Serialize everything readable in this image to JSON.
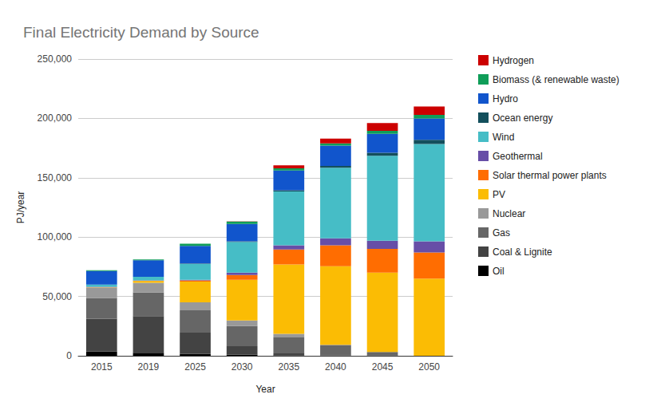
{
  "chart_data": {
    "type": "bar",
    "title": "Final Electricity Demand by Source",
    "x_label": "Year",
    "y_label": "PJ/year",
    "categories": [
      "2015",
      "2019",
      "2025",
      "2030",
      "2035",
      "2040",
      "2045",
      "2050"
    ],
    "stacked": true,
    "grid": true,
    "legend": "right",
    "ylim": [
      0,
      250000
    ],
    "yticks": [
      0,
      50000,
      100000,
      150000,
      200000,
      250000
    ],
    "series": [
      {
        "name": "Oil",
        "color": "#000000",
        "values": [
          3500,
          2500,
          1500,
          800,
          300,
          0,
          0,
          0
        ]
      },
      {
        "name": "Coal & Lignite",
        "color": "#434343",
        "values": [
          27800,
          31000,
          18000,
          7200,
          1700,
          300,
          200,
          0
        ]
      },
      {
        "name": "Gas",
        "color": "#666666",
        "values": [
          17500,
          20000,
          18800,
          17000,
          13500,
          8700,
          3000,
          0
        ]
      },
      {
        "name": "Nuclear",
        "color": "#999999",
        "values": [
          8500,
          8000,
          6700,
          4800,
          3000,
          200,
          0,
          0
        ]
      },
      {
        "name": "PV",
        "color": "#fbbc04",
        "values": [
          300,
          1500,
          17500,
          34200,
          58500,
          66300,
          66800,
          65000
        ]
      },
      {
        "name": "Solar thermal power plants",
        "color": "#ff6d01",
        "values": [
          100,
          200,
          1000,
          4000,
          12500,
          17500,
          20000,
          22000
        ]
      },
      {
        "name": "Geothermal",
        "color": "#674ea7",
        "values": [
          400,
          300,
          500,
          2000,
          3500,
          6000,
          7000,
          9500
        ]
      },
      {
        "name": "Wind",
        "color": "#46bdc6",
        "values": [
          1800,
          3000,
          13500,
          26000,
          45500,
          59500,
          71500,
          82000
        ]
      },
      {
        "name": "Ocean energy",
        "color": "#134f5c",
        "values": [
          0,
          0,
          300,
          500,
          1000,
          1500,
          2500,
          3500
        ]
      },
      {
        "name": "Hydro",
        "color": "#1155cc",
        "values": [
          11500,
          14000,
          14700,
          14500,
          16500,
          17000,
          16000,
          18000
        ]
      },
      {
        "name": "Biomass (& renewable waste)",
        "color": "#0f9d58",
        "values": [
          600,
          600,
          2000,
          2000,
          2000,
          2000,
          2500,
          3000
        ]
      },
      {
        "name": "Hydrogen",
        "color": "#cc0000",
        "values": [
          0,
          0,
          0,
          300,
          2500,
          4000,
          6500,
          7000
        ]
      }
    ]
  }
}
